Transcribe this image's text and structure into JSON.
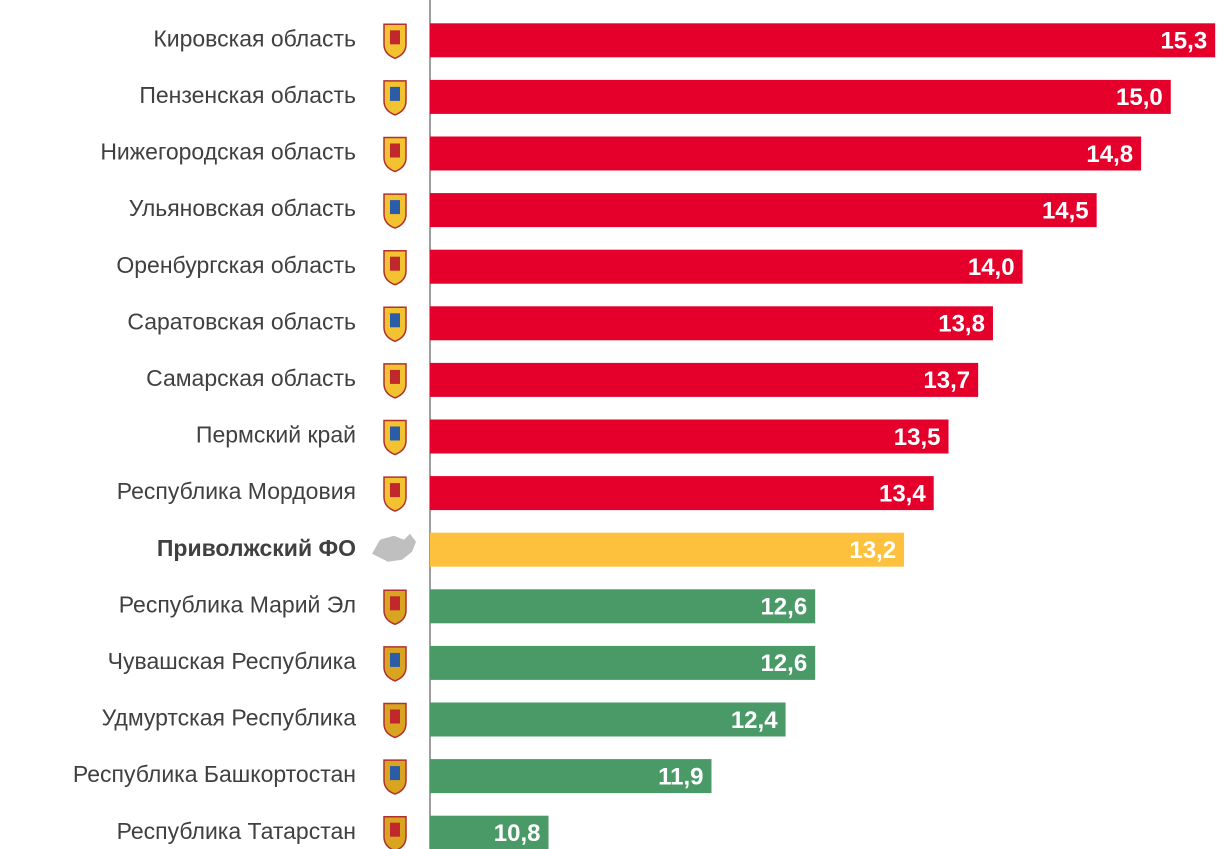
{
  "chart_data": {
    "type": "bar",
    "orientation": "horizontal",
    "categories": [
      "Кировская область",
      "Пензенская область",
      "Нижегородская область",
      "Ульяновская область",
      "Оренбургская область",
      "Саратовская область",
      "Самарская область",
      "Пермский край",
      "Республика Мордовия",
      "Приволжский ФО",
      "Республика Марий Эл",
      "Чувашская Республика",
      "Удмуртская Республика",
      "Республика Башкортостан",
      "Республика Татарстан"
    ],
    "values": [
      15.3,
      15.0,
      14.8,
      14.5,
      14.0,
      13.8,
      13.7,
      13.5,
      13.4,
      13.2,
      12.6,
      12.6,
      12.4,
      11.9,
      10.8
    ],
    "value_labels": [
      "15,3",
      "15,0",
      "14,8",
      "14,5",
      "14,0",
      "13,8",
      "13,7",
      "13,5",
      "13,4",
      "13,2",
      "12,6",
      "12,6",
      "12,4",
      "11,9",
      "10,8"
    ],
    "colors": [
      "#e4002b",
      "#e4002b",
      "#e4002b",
      "#e4002b",
      "#e4002b",
      "#e4002b",
      "#e4002b",
      "#e4002b",
      "#e4002b",
      "#fdc13e",
      "#4a9a68",
      "#4a9a68",
      "#4a9a68",
      "#4a9a68",
      "#4a9a68"
    ],
    "highlight_index": 9,
    "xlim": [
      10,
      15.4
    ]
  }
}
